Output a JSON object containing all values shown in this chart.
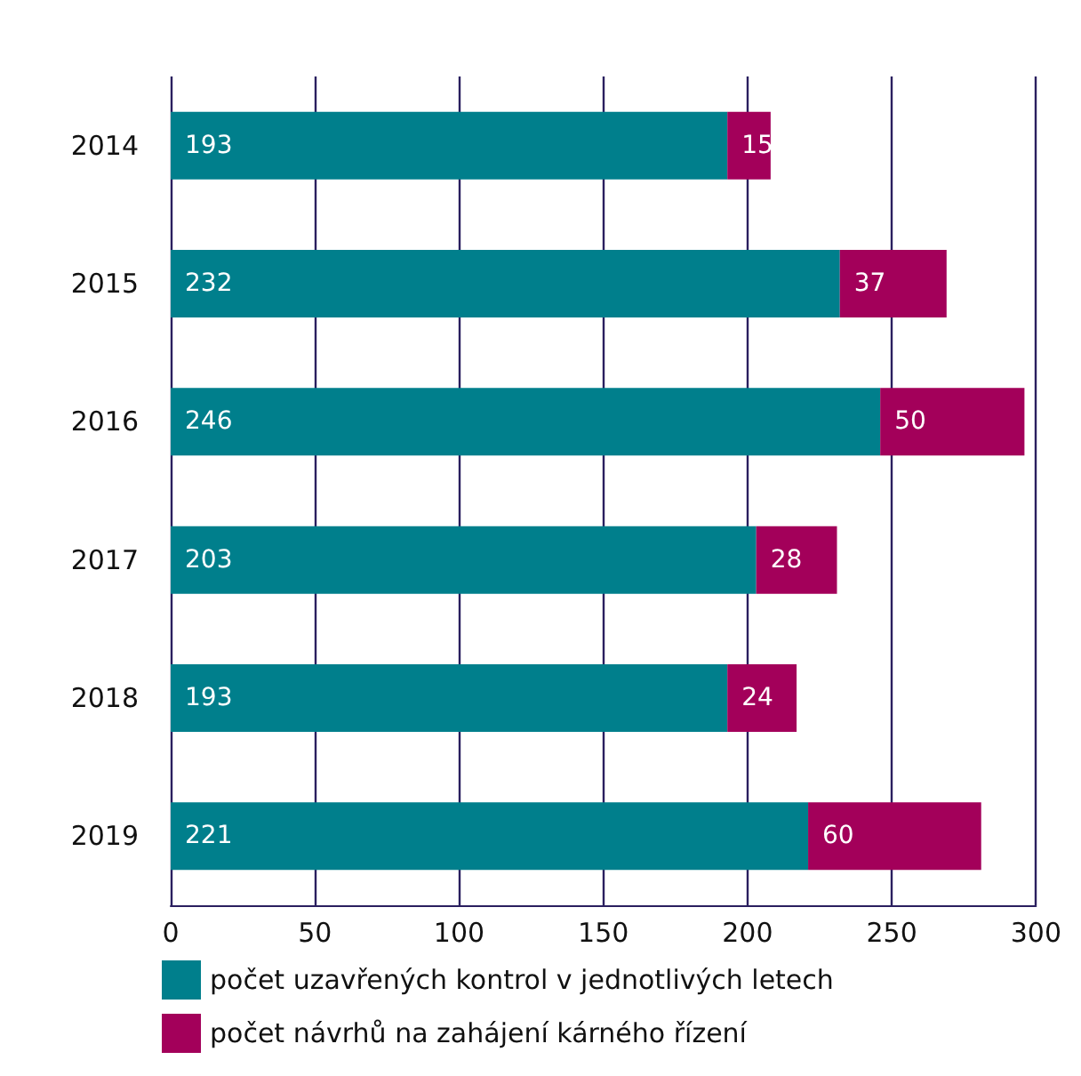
{
  "chart_data": {
    "type": "bar",
    "orientation": "horizontal",
    "stacked": true,
    "categories": [
      "2014",
      "2015",
      "2016",
      "2017",
      "2018",
      "2019"
    ],
    "series": [
      {
        "name": "počet uzavřených kontrol v jednotlivých letech",
        "color": "#007f8c",
        "values": [
          193,
          232,
          246,
          203,
          193,
          221
        ]
      },
      {
        "name": "počet návrhů na zahájení kárného řízení",
        "color": "#a3005a",
        "values": [
          15,
          37,
          50,
          28,
          24,
          60
        ]
      }
    ],
    "xlim": [
      0,
      300
    ],
    "xticks": [
      0,
      50,
      100,
      150,
      200,
      250,
      300
    ],
    "grid": "x",
    "legend": "bottom left",
    "data_labels": true
  }
}
